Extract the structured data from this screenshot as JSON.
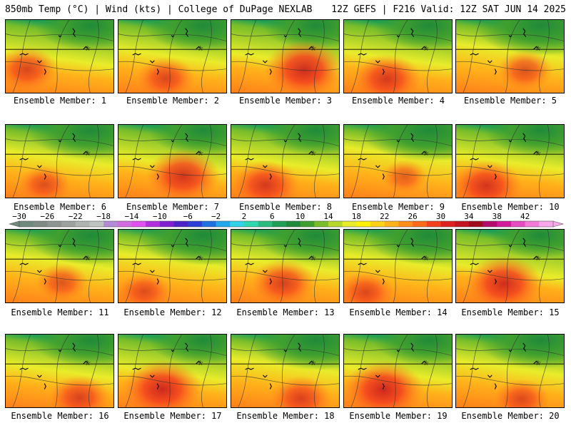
{
  "header": {
    "left": "850mb Temp (°C) | Wind (kts) | College of DuPage NEXLAB",
    "right": "12Z GEFS | F216 Valid: 12Z SAT JUN 14 2025"
  },
  "panels": [
    {
      "label": "Ensemble Member: 1",
      "heat": 0.55,
      "cool": 0.55
    },
    {
      "label": "Ensemble Member: 2",
      "heat": 0.5,
      "cool": 0.65
    },
    {
      "label": "Ensemble Member: 3",
      "heat": 0.85,
      "cool": 0.5
    },
    {
      "label": "Ensemble Member: 4",
      "heat": 0.65,
      "cool": 0.55
    },
    {
      "label": "Ensemble Member: 5",
      "heat": 0.45,
      "cool": 0.85
    },
    {
      "label": "Ensemble Member: 6",
      "heat": 0.4,
      "cool": 0.75
    },
    {
      "label": "Ensemble Member: 7",
      "heat": 0.75,
      "cool": 0.55
    },
    {
      "label": "Ensemble Member: 8",
      "heat": 0.65,
      "cool": 0.55
    },
    {
      "label": "Ensemble Member: 9",
      "heat": 0.3,
      "cool": 0.9
    },
    {
      "label": "Ensemble Member: 10",
      "heat": 0.7,
      "cool": 0.6
    },
    {
      "label": "Ensemble Member: 11",
      "heat": 0.4,
      "cool": 0.8
    },
    {
      "label": "Ensemble Member: 12",
      "heat": 0.4,
      "cool": 0.85
    },
    {
      "label": "Ensemble Member: 13",
      "heat": 0.6,
      "cool": 0.7
    },
    {
      "label": "Ensemble Member: 14",
      "heat": 0.45,
      "cool": 0.8
    },
    {
      "label": "Ensemble Member: 15",
      "heat": 0.8,
      "cool": 0.45
    },
    {
      "label": "Ensemble Member: 16",
      "heat": 0.55,
      "cool": 0.65
    },
    {
      "label": "Ensemble Member: 17",
      "heat": 0.85,
      "cool": 0.55
    },
    {
      "label": "Ensemble Member: 18",
      "heat": 0.55,
      "cool": 0.85
    },
    {
      "label": "Ensemble Member: 19",
      "heat": 0.85,
      "cool": 0.55
    },
    {
      "label": "Ensemble Member: 20",
      "heat": 0.45,
      "cool": 0.75
    }
  ],
  "colorbar": {
    "ticks": [
      "−30",
      "−26",
      "−22",
      "−18",
      "−14",
      "−10",
      "−6",
      "−2",
      "2",
      "6",
      "10",
      "14",
      "18",
      "22",
      "26",
      "30",
      "34",
      "38",
      "42"
    ],
    "colors": [
      "#6f8a7d",
      "#7f8a84",
      "#8d9491",
      "#9da29e",
      "#aeb4b0",
      "#bfc4c1",
      "#b48ad6",
      "#d26be0",
      "#e24ff0",
      "#b12dde",
      "#7f1fd0",
      "#4a22c6",
      "#2c3fd4",
      "#1d70e0",
      "#21a7ea",
      "#2fd2e6",
      "#2fd6b0",
      "#2bbd80",
      "#1f9f55",
      "#1f8a3a",
      "#3f9f2e",
      "#79bd2a",
      "#b6d82a",
      "#e9ec2a",
      "#fff200",
      "#ffd21a",
      "#ffb21a",
      "#ff8c1a",
      "#ff6a1a",
      "#f4401e",
      "#e0201e",
      "#c4141e",
      "#9e0c1e",
      "#b40a6e",
      "#d21a9a",
      "#e64bc1",
      "#f27ad6",
      "#f8a8e8"
    ]
  }
}
